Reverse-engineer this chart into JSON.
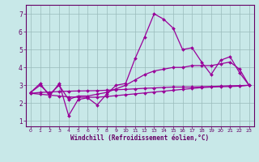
{
  "title": "",
  "xlabel": "Windchill (Refroidissement éolien,°C)",
  "ylabel": "",
  "bg_color": "#c8e8e8",
  "line_color": "#990099",
  "grid_color": "#99bbbb",
  "x": [
    0,
    1,
    2,
    3,
    4,
    5,
    6,
    7,
    8,
    9,
    10,
    11,
    12,
    13,
    14,
    15,
    16,
    17,
    18,
    19,
    20,
    21,
    22,
    23
  ],
  "line1": [
    2.6,
    3.1,
    2.4,
    3.1,
    1.3,
    2.2,
    2.3,
    1.9,
    2.5,
    3.0,
    3.1,
    4.5,
    5.7,
    7.0,
    6.7,
    6.2,
    5.0,
    5.1,
    4.3,
    3.6,
    4.4,
    4.6,
    3.7,
    3.0
  ],
  "line2": [
    2.6,
    3.0,
    2.5,
    3.0,
    2.2,
    2.4,
    2.4,
    2.5,
    2.6,
    2.8,
    3.0,
    3.3,
    3.6,
    3.8,
    3.9,
    4.0,
    4.0,
    4.1,
    4.1,
    4.1,
    4.2,
    4.3,
    3.9,
    3.0
  ],
  "line3": [
    2.55,
    2.6,
    2.62,
    2.65,
    2.67,
    2.68,
    2.69,
    2.7,
    2.72,
    2.75,
    2.77,
    2.8,
    2.83,
    2.85,
    2.88,
    2.9,
    2.9,
    2.9,
    2.92,
    2.93,
    2.95,
    2.97,
    2.98,
    3.0
  ],
  "line4": [
    2.55,
    2.5,
    2.45,
    2.4,
    2.35,
    2.33,
    2.33,
    2.33,
    2.37,
    2.42,
    2.47,
    2.52,
    2.57,
    2.62,
    2.67,
    2.72,
    2.77,
    2.82,
    2.87,
    2.9,
    2.92,
    2.93,
    2.95,
    3.0
  ],
  "xlim": [
    -0.5,
    23.5
  ],
  "ylim": [
    0.7,
    7.5
  ],
  "xticks": [
    0,
    1,
    2,
    3,
    4,
    5,
    6,
    7,
    8,
    9,
    10,
    11,
    12,
    13,
    14,
    15,
    16,
    17,
    18,
    19,
    20,
    21,
    22,
    23
  ],
  "yticks": [
    1,
    2,
    3,
    4,
    5,
    6,
    7
  ],
  "axis_color": "#660066",
  "tick_color": "#660066",
  "label_color": "#660066",
  "marker": "D",
  "markersize": 2.0,
  "linewidth": 0.9
}
